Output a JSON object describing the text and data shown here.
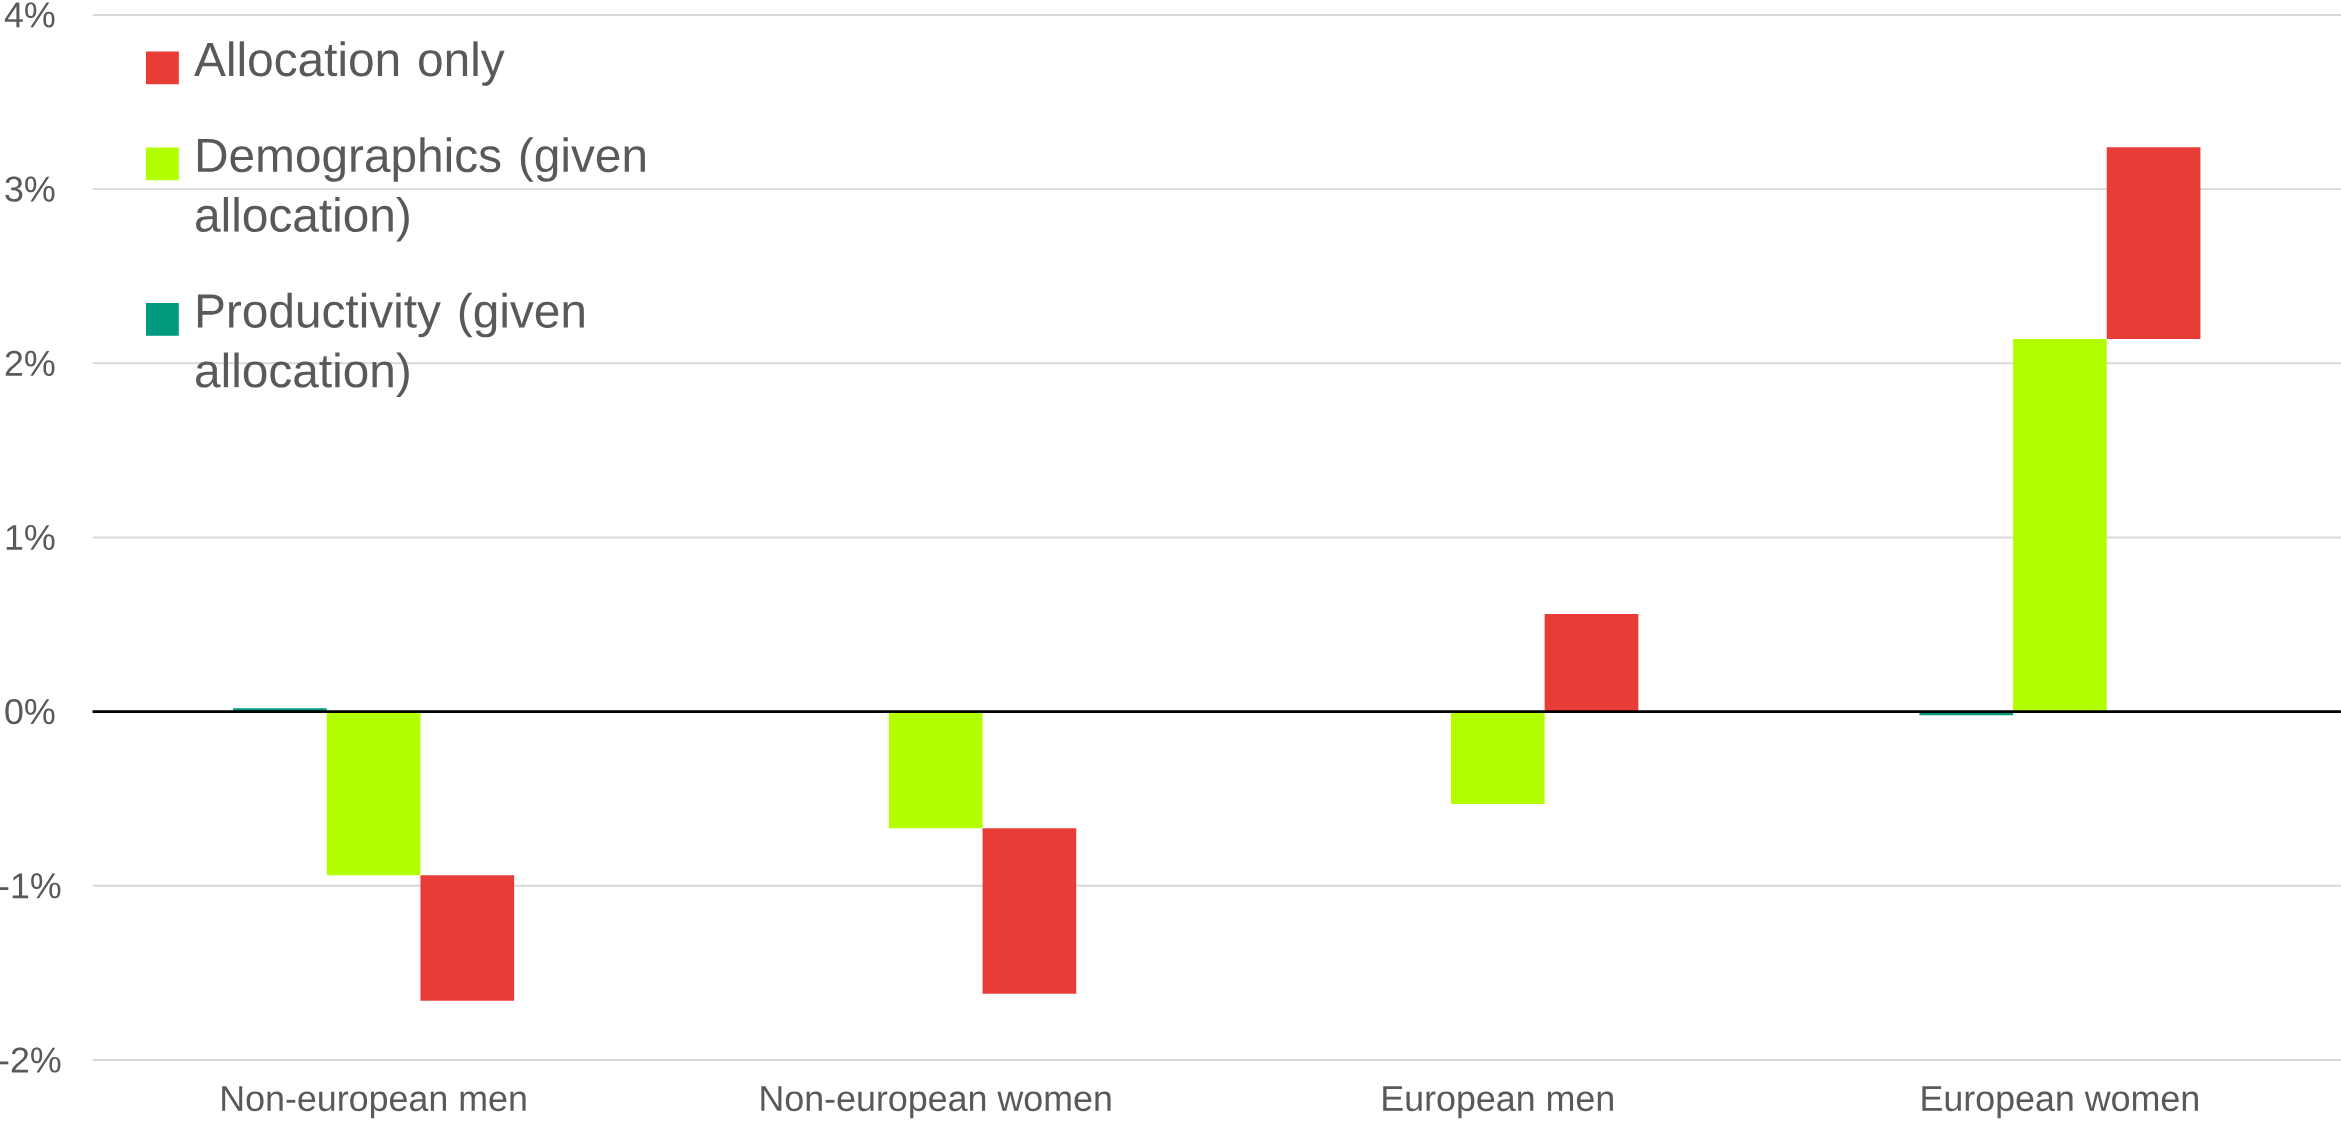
{
  "chart_data": {
    "type": "bar",
    "categories": [
      "Non-european men",
      "Non-european women",
      "European men",
      "European women"
    ],
    "series": [
      {
        "name": "Productivity (given allocation)",
        "color": "#009a7e",
        "values": [
          0.02,
          0,
          0,
          -0.02
        ]
      },
      {
        "name": "Demographics (given allocation)",
        "color": "#b3ff00",
        "values": [
          -0.94,
          -0.67,
          -0.53,
          2.14
        ]
      },
      {
        "name": "Allocation only",
        "color": "#e83c37",
        "values": [
          -0.72,
          -0.95,
          0.56,
          1.1
        ],
        "base": [
          -0.94,
          -0.67,
          0,
          2.14
        ]
      }
    ],
    "ylim": [
      -2,
      4
    ],
    "yticks": [
      {
        "value": -2,
        "label": "-2%"
      },
      {
        "value": -1,
        "label": "-1%"
      },
      {
        "value": 0,
        "label": "0%"
      },
      {
        "value": 1,
        "label": "1%"
      },
      {
        "value": 2,
        "label": "2%"
      },
      {
        "value": 3,
        "label": "3%"
      },
      {
        "value": 4,
        "label": "4%"
      }
    ],
    "ref_lines": [
      {
        "axis": "y",
        "value": 0,
        "color": "#000000"
      }
    ],
    "grid": "y",
    "legend": "top left"
  }
}
